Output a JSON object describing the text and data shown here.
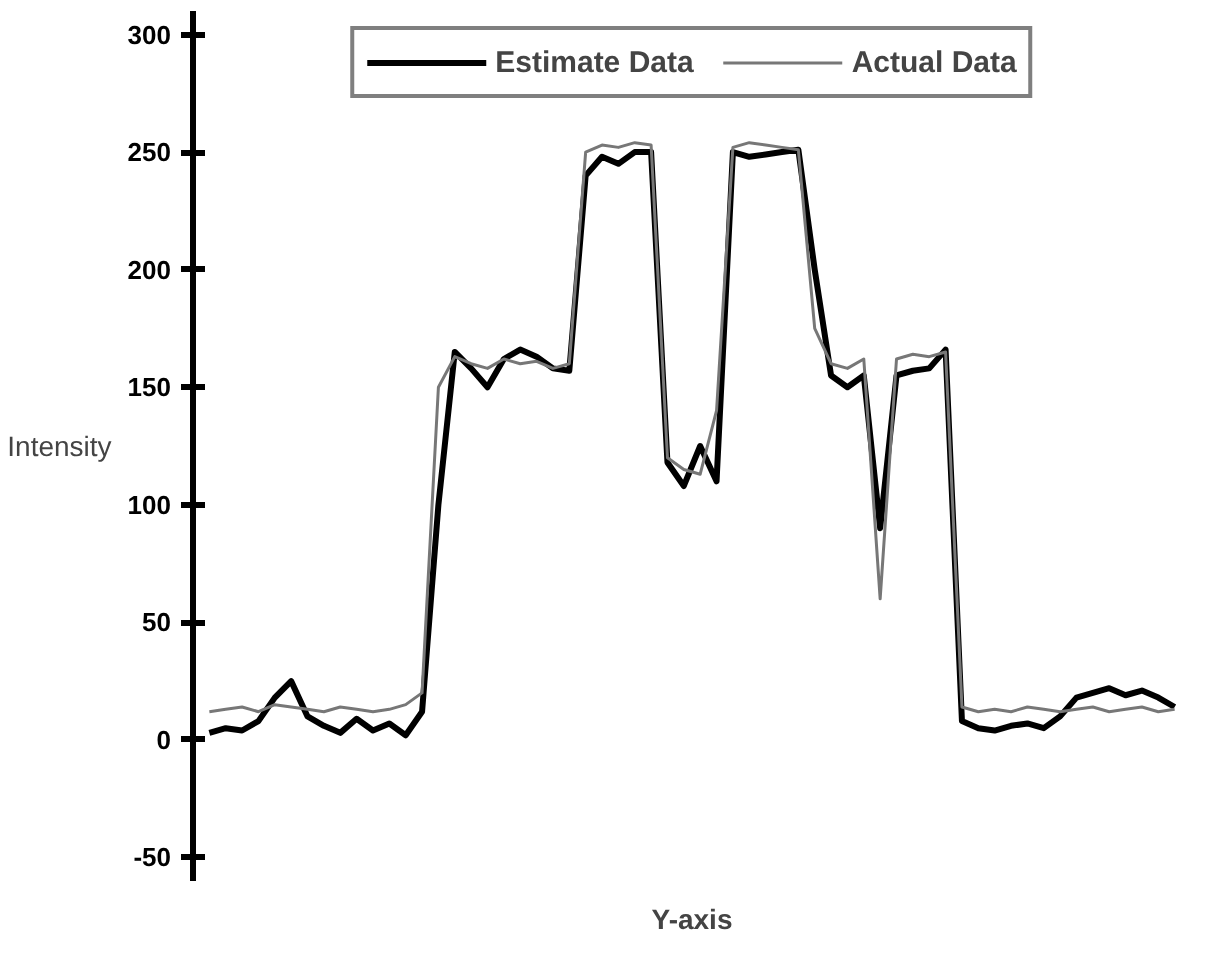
{
  "chart_data": {
    "type": "line",
    "xlabel": "Y-axis",
    "ylabel": "Intensity",
    "categories": [
      null,
      null,
      null,
      null,
      null,
      null,
      null,
      null,
      null,
      null,
      null,
      null,
      null,
      null,
      null,
      null,
      null,
      null,
      null,
      null,
      null,
      null,
      null,
      null,
      null,
      null,
      null,
      null,
      null,
      null,
      null,
      null,
      null,
      null,
      null,
      null,
      null,
      null,
      null,
      null,
      null,
      null,
      null,
      null,
      null,
      null,
      null,
      null,
      null,
      null,
      null,
      null,
      null,
      null,
      null,
      null,
      null,
      null,
      null,
      null
    ],
    "series": [
      {
        "name": "Estimate Data",
        "color": "#000000",
        "values": [
          3,
          5,
          4,
          8,
          18,
          25,
          10,
          6,
          3,
          9,
          4,
          7,
          2,
          12,
          100,
          165,
          158,
          150,
          162,
          166,
          163,
          158,
          157,
          240,
          248,
          245,
          250,
          250,
          118,
          108,
          125,
          110,
          250,
          248,
          249,
          250,
          251,
          200,
          155,
          150,
          155,
          90,
          155,
          157,
          158,
          166,
          8,
          5,
          4,
          6,
          7,
          5,
          10,
          18,
          20,
          22,
          19,
          21,
          18,
          14
        ]
      },
      {
        "name": "Actual Data",
        "color": "#777777",
        "values": [
          12,
          13,
          14,
          12,
          15,
          14,
          13,
          12,
          14,
          13,
          12,
          13,
          15,
          20,
          150,
          163,
          160,
          158,
          162,
          160,
          161,
          158,
          160,
          250,
          253,
          252,
          254,
          253,
          120,
          115,
          113,
          140,
          252,
          254,
          253,
          252,
          251,
          175,
          160,
          158,
          162,
          60,
          162,
          164,
          163,
          165,
          14,
          12,
          13,
          12,
          14,
          13,
          12,
          13,
          14,
          12,
          13,
          14,
          12,
          13
        ]
      }
    ],
    "ylim": [
      -60,
      310
    ],
    "yticks": [
      -50,
      0,
      50,
      100,
      150,
      200,
      250,
      300
    ],
    "tick_labels": "y",
    "grid": false,
    "legend": "top",
    "marker": "none",
    "line_style": "solid"
  }
}
